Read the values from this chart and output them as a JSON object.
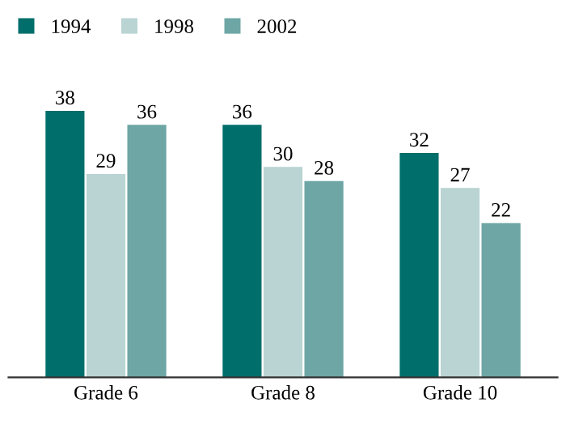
{
  "chart_data": {
    "type": "bar",
    "categories": [
      "Grade 6",
      "Grade 8",
      "Grade 10"
    ],
    "series": [
      {
        "name": "1994",
        "color": "#006e6b",
        "values": [
          38,
          36,
          32
        ]
      },
      {
        "name": "1998",
        "color": "#b9d4d3",
        "values": [
          29,
          30,
          27
        ]
      },
      {
        "name": "2002",
        "color": "#6da6a4",
        "values": [
          36,
          28,
          22
        ]
      }
    ],
    "data_labels": true,
    "legend": "top left",
    "grid": false
  }
}
